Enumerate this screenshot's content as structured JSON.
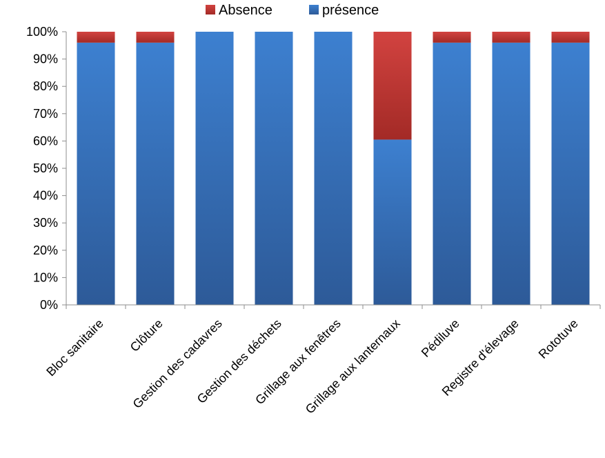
{
  "chart_data": {
    "type": "bar",
    "stacked": "percent",
    "categories": [
      "Bloc sanitaire",
      "Clôture",
      "Gestion des cadavres",
      "Gestion des déchets",
      "Grillage aux fenêtres",
      "Grillage aux lanternaux",
      "Pédiluve",
      "Registre d'élevage",
      "Rototuve"
    ],
    "series": [
      {
        "name": "présence",
        "color": "#3A78C6",
        "values": [
          96,
          96,
          100,
          100,
          100,
          60.5,
          96,
          96,
          96
        ]
      },
      {
        "name": "Absence",
        "color": "#C0393B",
        "values": [
          4,
          4,
          0,
          0,
          0,
          39.5,
          4,
          4,
          4
        ]
      }
    ],
    "legend_order": [
      "Absence",
      "présence"
    ],
    "legend_position": "top",
    "ylim": [
      0,
      100
    ],
    "yticks": [
      "0%",
      "10%",
      "20%",
      "30%",
      "40%",
      "50%",
      "60%",
      "70%",
      "80%",
      "90%",
      "100%"
    ],
    "grid": false,
    "title": "",
    "xlabel": "",
    "ylabel": ""
  }
}
